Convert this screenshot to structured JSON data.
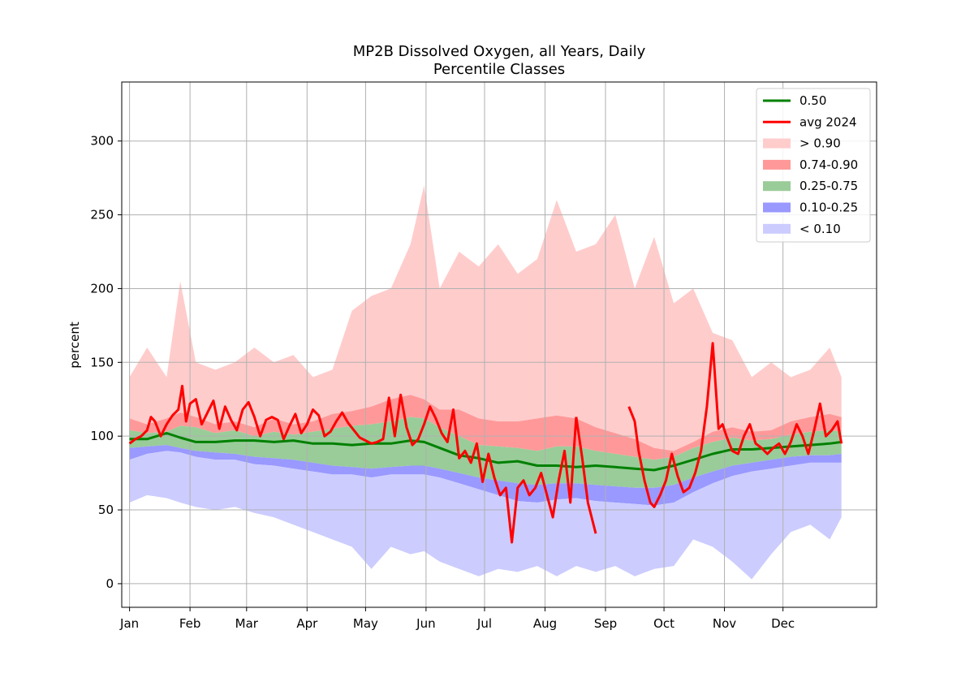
{
  "chart_data": {
    "type": "area",
    "title": "MP2B Dissolved Oxygen, all Years, Daily",
    "subtitle": "Percentile Classes",
    "xlabel": "",
    "ylabel": "percent",
    "x_ticks": [
      "Jan",
      "Feb",
      "Mar",
      "Apr",
      "May",
      "Jun",
      "Jul",
      "Aug",
      "Sep",
      "Oct",
      "Nov",
      "Dec"
    ],
    "x_tick_days": [
      1,
      32,
      61,
      92,
      122,
      153,
      183,
      214,
      245,
      275,
      306,
      336
    ],
    "xlim": [
      -3,
      384
    ],
    "ylim": [
      -16,
      340
    ],
    "y_ticks": [
      0,
      50,
      100,
      150,
      200,
      250,
      300
    ],
    "grid": true,
    "legend_position": "top-right",
    "colors": {
      "median": "#008000",
      "avg": "#ff0000",
      "gt90": "#ffcccc",
      "p74_90": "#ff9999",
      "p25_75": "#99cc99",
      "p10_25": "#9999ff",
      "lt10": "#ccccff"
    },
    "legend": [
      {
        "label": "0.50",
        "kind": "line",
        "color": "#008000"
      },
      {
        "label": "avg 2024",
        "kind": "line",
        "color": "#ff0000"
      },
      {
        "label": "> 0.90",
        "kind": "patch",
        "color": "#ffcccc"
      },
      {
        "label": "0.74-0.90",
        "kind": "patch",
        "color": "#ff9999"
      },
      {
        "label": "0.25-0.75",
        "kind": "patch",
        "color": "#99cc99"
      },
      {
        "label": "0.10-0.25",
        "kind": "patch",
        "color": "#9999ff"
      },
      {
        "label": "< 0.10",
        "kind": "patch",
        "color": "#ccccff"
      }
    ],
    "day": [
      1,
      10,
      20,
      27,
      35,
      45,
      55,
      65,
      75,
      85,
      95,
      105,
      115,
      125,
      135,
      145,
      152,
      160,
      170,
      180,
      190,
      200,
      210,
      220,
      230,
      240,
      250,
      260,
      270,
      280,
      290,
      300,
      310,
      320,
      330,
      340,
      350,
      360,
      366
    ],
    "series": [
      {
        "key": "max",
        "values": [
          140,
          160,
          140,
          205,
          150,
          145,
          150,
          160,
          150,
          155,
          140,
          145,
          185,
          195,
          200,
          230,
          270,
          200,
          225,
          215,
          230,
          210,
          220,
          260,
          225,
          230,
          250,
          200,
          235,
          190,
          200,
          170,
          165,
          140,
          150,
          140,
          145,
          160,
          140
        ]
      },
      {
        "key": "p90",
        "values": [
          112,
          108,
          112,
          116,
          113,
          108,
          110,
          106,
          112,
          108,
          110,
          115,
          117,
          120,
          125,
          128,
          125,
          118,
          118,
          112,
          110,
          110,
          112,
          114,
          112,
          106,
          102,
          98,
          92,
          90,
          96,
          103,
          106,
          103,
          104,
          110,
          113,
          115,
          113
        ]
      },
      {
        "key": "p75",
        "values": [
          104,
          102,
          103,
          107,
          106,
          102,
          104,
          100,
          103,
          101,
          103,
          105,
          107,
          108,
          110,
          113,
          112,
          106,
          100,
          94,
          93,
          92,
          90,
          93,
          93,
          90,
          88,
          86,
          84,
          86,
          92,
          96,
          99,
          97,
          98,
          101,
          103,
          104,
          103
        ]
      },
      {
        "key": "p50",
        "values": [
          98,
          98,
          102,
          99,
          96,
          96,
          97,
          97,
          96,
          97,
          95,
          95,
          94,
          95,
          95,
          97,
          96,
          92,
          87,
          85,
          82,
          83,
          80,
          80,
          79,
          80,
          79,
          78,
          77,
          80,
          84,
          88,
          91,
          91,
          92,
          93,
          94,
          95,
          96
        ]
      },
      {
        "key": "p25",
        "values": [
          92,
          93,
          94,
          92,
          90,
          89,
          88,
          86,
          85,
          84,
          82,
          80,
          79,
          78,
          79,
          80,
          80,
          78,
          75,
          72,
          70,
          68,
          67,
          68,
          68,
          67,
          66,
          65,
          65,
          67,
          72,
          76,
          80,
          82,
          84,
          86,
          87,
          87,
          88
        ]
      },
      {
        "key": "p10",
        "values": [
          84,
          88,
          90,
          89,
          86,
          84,
          84,
          81,
          80,
          78,
          76,
          74,
          74,
          72,
          74,
          74,
          74,
          72,
          68,
          64,
          60,
          56,
          55,
          57,
          58,
          56,
          55,
          54,
          53,
          55,
          62,
          68,
          73,
          76,
          78,
          80,
          82,
          82,
          82
        ]
      },
      {
        "key": "min",
        "values": [
          55,
          60,
          58,
          55,
          52,
          50,
          52,
          48,
          45,
          40,
          35,
          30,
          25,
          10,
          25,
          20,
          22,
          15,
          10,
          5,
          10,
          8,
          12,
          5,
          12,
          8,
          12,
          5,
          10,
          12,
          30,
          25,
          15,
          3,
          20,
          35,
          40,
          30,
          45
        ]
      },
      {
        "name": "0.50",
        "key": "median_line",
        "values": [
          98,
          98,
          102,
          99,
          96,
          96,
          97,
          97,
          96,
          97,
          95,
          95,
          94,
          95,
          95,
          97,
          96,
          92,
          87,
          85,
          82,
          83,
          80,
          80,
          79,
          80,
          79,
          78,
          77,
          80,
          84,
          88,
          91,
          91,
          92,
          93,
          94,
          95,
          96
        ]
      }
    ],
    "avg_2024": {
      "name": "avg 2024",
      "segments": [
        {
          "days": [
            1,
            4,
            7,
            10,
            12,
            14,
            17,
            20,
            23,
            26,
            28,
            30,
            32,
            35,
            38,
            41,
            44,
            47,
            50,
            53,
            56,
            59,
            62,
            65,
            68,
            71,
            74,
            77,
            80,
            83,
            86,
            89,
            92,
            95,
            98,
            101,
            104,
            107,
            110,
            113,
            116,
            119,
            122,
            125,
            128,
            131,
            134,
            137,
            140,
            143,
            146,
            149,
            152,
            155,
            158,
            161,
            164,
            167,
            170,
            173,
            176,
            179,
            182,
            185,
            188,
            191,
            194,
            197,
            200,
            203,
            206,
            209,
            212,
            215,
            218,
            221,
            224,
            227,
            230
          ],
          "values": [
            95,
            98,
            100,
            104,
            113,
            110,
            100,
            108,
            114,
            118,
            134,
            110,
            122,
            125,
            108,
            116,
            124,
            105,
            120,
            111,
            104,
            118,
            123,
            113,
            100,
            111,
            113,
            111,
            98,
            107,
            115,
            102,
            108,
            118,
            114,
            100,
            103,
            110,
            116,
            109,
            104,
            99,
            97,
            95,
            96,
            98,
            126,
            100,
            128,
            106,
            94,
            98,
            108,
            120,
            112,
            102,
            96,
            118,
            85,
            90,
            82,
            95,
            69,
            88,
            72,
            60,
            65,
            28,
            65,
            70,
            60,
            65,
            75,
            60,
            45,
            70,
            90,
            55,
            113
          ]
        },
        {
          "days": [
            230,
            233,
            236,
            240
          ],
          "values": [
            113,
            86,
            55,
            34
          ]
        },
        {
          "days": [
            257,
            260,
            262,
            265,
            268,
            270,
            273,
            276,
            279,
            282,
            285,
            288,
            291,
            294,
            297,
            300,
            303,
            305,
            307,
            310,
            313,
            316,
            319,
            322,
            325,
            328,
            331,
            334,
            337,
            340,
            343,
            346,
            349,
            352,
            355,
            358,
            361,
            364,
            366
          ],
          "values": [
            120,
            110,
            90,
            70,
            55,
            52,
            60,
            70,
            88,
            73,
            62,
            65,
            75,
            90,
            120,
            163,
            105,
            108,
            100,
            90,
            88,
            100,
            108,
            95,
            92,
            88,
            92,
            95,
            88,
            96,
            108,
            100,
            88,
            104,
            122,
            100,
            104,
            110,
            95
          ]
        }
      ]
    }
  }
}
